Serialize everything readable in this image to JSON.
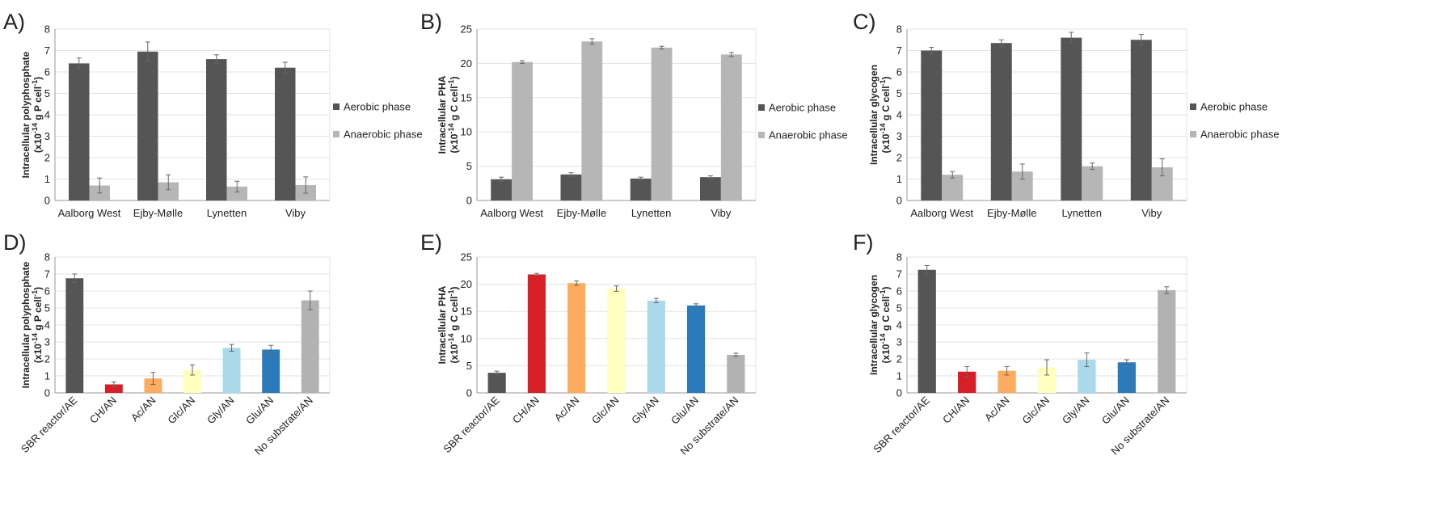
{
  "colors": {
    "aerobic": "#555555",
    "anaerobic": "#b6b6b6",
    "grid": "#e3e3e3",
    "axis": "#999999",
    "error": "#666666",
    "substrates": [
      "#555555",
      "#d61f26",
      "#fdab5e",
      "#ffffbe",
      "#a9d9ea",
      "#2b7bba",
      "#b2b2b2"
    ]
  },
  "chart_data": [
    {
      "panel": "A)",
      "type": "bar",
      "ylabel_line1": "Intracellular polyphosphate",
      "ylabel_pre": "(x10",
      "ylabel_sup1": "-14",
      "ylabel_mid": " g P cell",
      "ylabel_sup2": "-1",
      "ylabel_post": ")",
      "ylim": [
        0,
        8
      ],
      "yticks": [
        "0",
        "1",
        "2",
        "3",
        "4",
        "5",
        "6",
        "7",
        "8"
      ],
      "categories": [
        "Aalborg West",
        "Ejby-Mølle",
        "Lynetten",
        "Viby"
      ],
      "series": [
        {
          "name": "Aerobic phase",
          "values": [
            6.4,
            6.95,
            6.6,
            6.2
          ],
          "errors": [
            0.25,
            0.45,
            0.2,
            0.25
          ]
        },
        {
          "name": "Anaerobic phase",
          "values": [
            0.7,
            0.85,
            0.65,
            0.72
          ],
          "errors": [
            0.35,
            0.35,
            0.25,
            0.38
          ]
        }
      ],
      "legend": "right"
    },
    {
      "panel": "B)",
      "type": "bar",
      "ylabel_line1": "Intracellular PHA",
      "ylabel_pre": "(x10",
      "ylabel_sup1": "-14",
      "ylabel_mid": " g C cell",
      "ylabel_sup2": "-1",
      "ylabel_post": ")",
      "ylim": [
        0,
        25
      ],
      "yticks": [
        "0",
        "5",
        "10",
        "15",
        "20",
        "25"
      ],
      "categories": [
        "Aalborg West",
        "Ejby-Mølle",
        "Lynetten",
        "Viby"
      ],
      "series": [
        {
          "name": "Aerobic phase",
          "values": [
            3.1,
            3.8,
            3.2,
            3.4
          ],
          "errors": [
            0.3,
            0.25,
            0.2,
            0.2
          ]
        },
        {
          "name": "Anaerobic phase",
          "values": [
            20.2,
            23.2,
            22.3,
            21.3
          ],
          "errors": [
            0.2,
            0.4,
            0.2,
            0.3
          ]
        }
      ],
      "legend": "right"
    },
    {
      "panel": "C)",
      "type": "bar",
      "ylabel_line1": "Intracellular glycogen",
      "ylabel_pre": "(x10",
      "ylabel_sup1": "-14",
      "ylabel_mid": " g C cell",
      "ylabel_sup2": "-1",
      "ylabel_post": ")",
      "ylim": [
        0,
        8
      ],
      "yticks": [
        "0",
        "1",
        "2",
        "3",
        "4",
        "5",
        "6",
        "7",
        "8"
      ],
      "categories": [
        "Aalborg West",
        "Ejby-Mølle",
        "Lynetten",
        "Viby"
      ],
      "series": [
        {
          "name": "Aerobic phase",
          "values": [
            7.0,
            7.35,
            7.6,
            7.5
          ],
          "errors": [
            0.15,
            0.15,
            0.25,
            0.25
          ]
        },
        {
          "name": "Anaerobic phase",
          "values": [
            1.2,
            1.35,
            1.6,
            1.55
          ],
          "errors": [
            0.15,
            0.35,
            0.15,
            0.4
          ]
        }
      ],
      "legend": "right"
    },
    {
      "panel": "D)",
      "type": "bar",
      "ylabel_line1": "Intracellular polyphosphate",
      "ylabel_pre": "(x10",
      "ylabel_sup1": "-14",
      "ylabel_mid": " g P cell",
      "ylabel_sup2": "-1",
      "ylabel_post": ")",
      "ylim": [
        0,
        8
      ],
      "yticks": [
        "0",
        "1",
        "2",
        "3",
        "4",
        "5",
        "6",
        "7",
        "8"
      ],
      "categories": [
        "SBR reactor/AE",
        "CH/AN",
        "Ac/AN",
        "Glc/AN",
        "Gly/AN",
        "Glu/AN",
        "No substrate/AN"
      ],
      "values": [
        6.75,
        0.5,
        0.85,
        1.35,
        2.65,
        2.55,
        5.45
      ],
      "errors": [
        0.25,
        0.15,
        0.35,
        0.3,
        0.2,
        0.25,
        0.55
      ]
    },
    {
      "panel": "E)",
      "type": "bar",
      "ylabel_line1": "Intracellular PHA",
      "ylabel_pre": "(x10",
      "ylabel_sup1": "-14",
      "ylabel_mid": " g C cell",
      "ylabel_sup2": "-1",
      "ylabel_post": ")",
      "ylim": [
        0,
        25
      ],
      "yticks": [
        "0",
        "5",
        "10",
        "15",
        "20",
        "25"
      ],
      "categories": [
        "SBR reactor/AE",
        "CH/AN",
        "Ac/AN",
        "Glc/AN",
        "Gly/AN",
        "Glu/AN",
        "No substrate/AN"
      ],
      "values": [
        3.7,
        21.8,
        20.2,
        19.2,
        17.0,
        16.1,
        7.0
      ],
      "errors": [
        0.3,
        0.2,
        0.4,
        0.5,
        0.4,
        0.3,
        0.3
      ]
    },
    {
      "panel": "F)",
      "type": "bar",
      "ylabel_line1": "Intracellular glycogen",
      "ylabel_pre": "(x10",
      "ylabel_sup1": "-14",
      "ylabel_mid": " g C cell",
      "ylabel_sup2": "-1",
      "ylabel_post": ")",
      "ylim": [
        0,
        8
      ],
      "yticks": [
        "0",
        "1",
        "2",
        "3",
        "4",
        "5",
        "6",
        "7",
        "8"
      ],
      "categories": [
        "SBR reactor/AE",
        "CH/AN",
        "Ac/AN",
        "Glc/AN",
        "Gly/AN",
        "Glu/AN",
        "No substrate/AN"
      ],
      "values": [
        7.25,
        1.25,
        1.3,
        1.5,
        1.95,
        1.8,
        6.05
      ],
      "errors": [
        0.25,
        0.3,
        0.25,
        0.45,
        0.4,
        0.15,
        0.2
      ]
    }
  ]
}
